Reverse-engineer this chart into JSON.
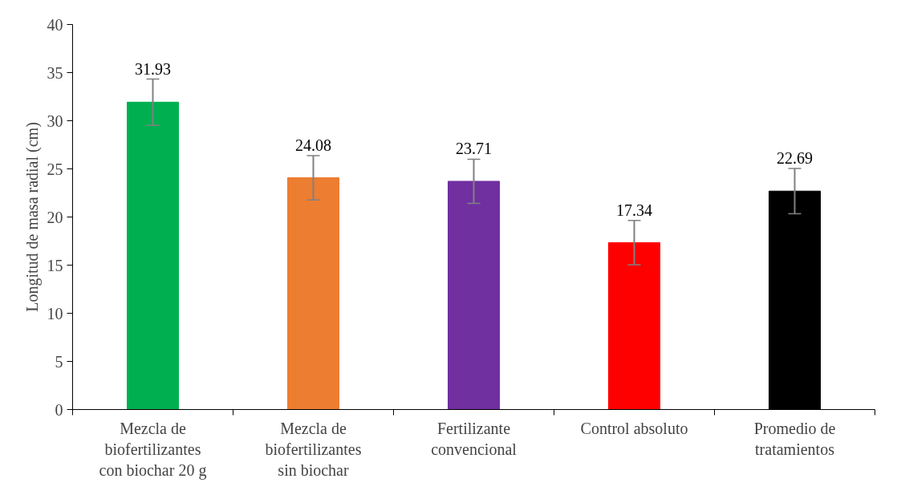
{
  "chart_data": {
    "type": "bar",
    "ylabel": "Longitud de masa radial (cm)",
    "categories": [
      "Mezcla de biofertilizantes con biochar 20 g",
      "Mezcla de biofertilizantes sin biochar",
      "Fertilizante convencional",
      "Control absoluto",
      "Promedio de tratamientos"
    ],
    "values": [
      31.93,
      24.08,
      23.71,
      17.34,
      22.69
    ],
    "colors": [
      "#00b050",
      "#ed7d31",
      "#7030a0",
      "#ff0000",
      "#000000"
    ],
    "errors": [
      2.4,
      2.3,
      2.3,
      2.3,
      2.35
    ],
    "data_labels": true,
    "ylim": [
      0,
      40
    ],
    "yticks": [
      0,
      5,
      10,
      15,
      20,
      25,
      30,
      35,
      40
    ],
    "grid": false
  }
}
